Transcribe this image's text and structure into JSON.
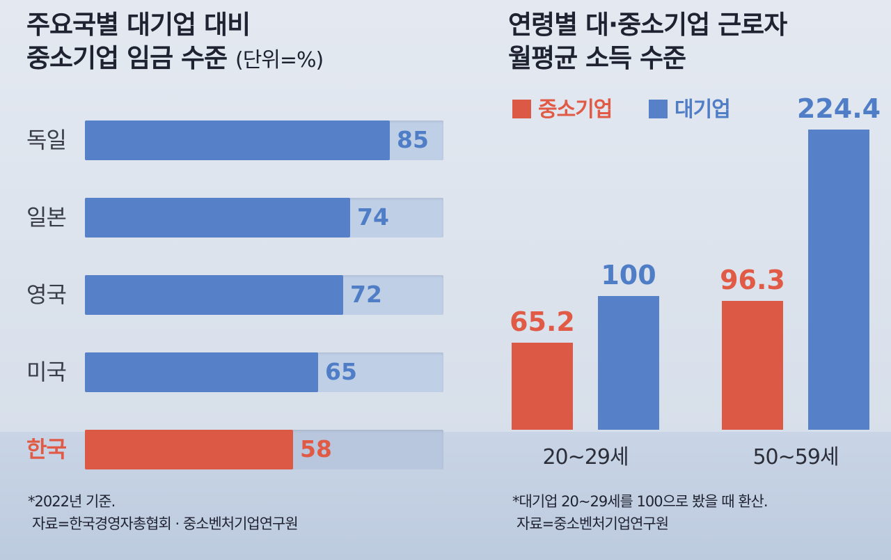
{
  "left": {
    "title_line1": "주요국별 대기업 대비",
    "title_line2": "중소기업 임금 수준",
    "title_unit": "(단위=%)",
    "note_line1": "*2022년 기준.",
    "note_line2": "자료=한국경영자총협회 · 중소벤처기업연구원"
  },
  "right": {
    "title_line1": "연령별 대·중소기업 근로자",
    "title_line2": "월평균 소득 수준",
    "note_line1": "*대기업 20~29세를 100으로 봤을 때 환산.",
    "note_line2": "자료=중소벤처기업연구원"
  },
  "colors": {
    "highlight": "#dc5a45",
    "blue": "#5680c8",
    "track": "#bfcfe6"
  },
  "chart_data": [
    {
      "type": "bar",
      "orientation": "horizontal",
      "title": "주요국별 대기업 대비 중소기업 임금 수준 (단위=%)",
      "categories": [
        "독일",
        "일본",
        "영국",
        "미국",
        "한국"
      ],
      "values": [
        85,
        74,
        72,
        65,
        58
      ],
      "xlim": [
        0,
        100
      ],
      "highlight": "한국"
    },
    {
      "type": "bar",
      "orientation": "vertical",
      "title": "연령별 대·중소기업 근로자 월평균 소득 수준",
      "categories": [
        "20~29세",
        "50~59세"
      ],
      "series": [
        {
          "name": "중소기업",
          "values": [
            65.2,
            96.3
          ]
        },
        {
          "name": "대기업",
          "values": [
            100,
            224.4
          ]
        }
      ],
      "value_labels": [
        [
          "65.2",
          "96.3"
        ],
        [
          "100",
          "224.4"
        ]
      ],
      "legend_position": "top-left"
    }
  ]
}
